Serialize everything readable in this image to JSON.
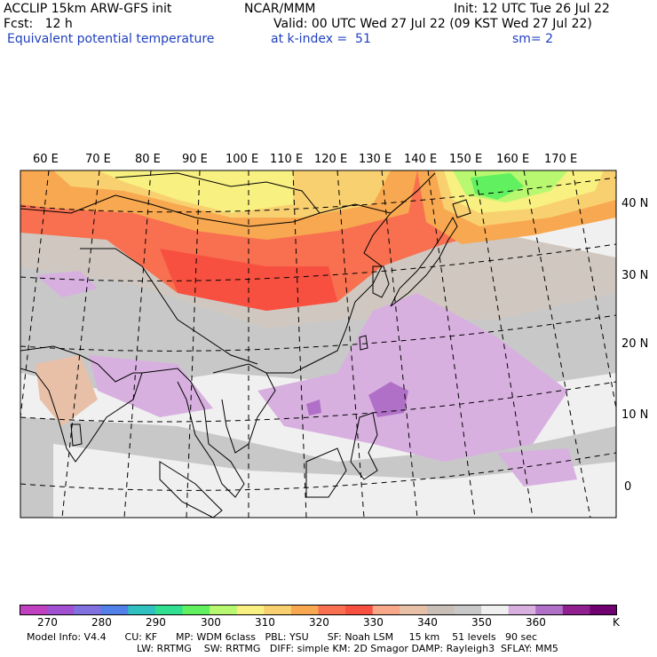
{
  "header": {
    "line1_left": "ACCLIP 15km ARW-GFS init",
    "line1_center": "NCAR/MMM",
    "line1_right": "Init: 12 UTC Tue 26 Jul 22",
    "line2_left": "Fcst:   12 h",
    "line2_right": "Valid: 00 UTC Wed 27 Jul 22 (09 KST Wed 27 Jul 22)",
    "line3_left": "Equivalent potential temperature",
    "line3_center": "at k-index =  51",
    "line3_right": "sm= 2"
  },
  "map": {
    "lon_labels": [
      "60 E",
      "70 E",
      "80 E",
      "90 E",
      "100 E",
      "110 E",
      "120 E",
      "130 E",
      "140 E",
      "150 E",
      "160 E",
      "170 E"
    ],
    "lat_labels": [
      "40 N",
      "30 N",
      "20 N",
      "10 N",
      "0"
    ]
  },
  "colorbar": {
    "colors": [
      "#c040c0",
      "#a050d0",
      "#8070e0",
      "#5080e8",
      "#30c0c0",
      "#30e090",
      "#60f060",
      "#b8f870",
      "#f8f080",
      "#f8d070",
      "#f8a850",
      "#f87050",
      "#f85040",
      "#f8a888",
      "#e8c0a8",
      "#c8c0b8",
      "#c8c8c8",
      "#f0f0f0",
      "#d8b0e0",
      "#b070c8",
      "#902090",
      "#700070"
    ],
    "labels": [
      "270",
      "280",
      "290",
      "300",
      "310",
      "320",
      "330",
      "340",
      "350",
      "360",
      "K"
    ]
  },
  "footer": {
    "line1": "Model Info: V4.4      CU: KF      MP: WDM 6class   PBL: YSU      SF: Noah LSM     15 km    51 levels   90 sec",
    "line2": "LW: RRTMG    SW: RRTMG   DIFF: simple KM: 2D Smagor DAMP: Rayleigh3  SFLAY: MM5"
  }
}
